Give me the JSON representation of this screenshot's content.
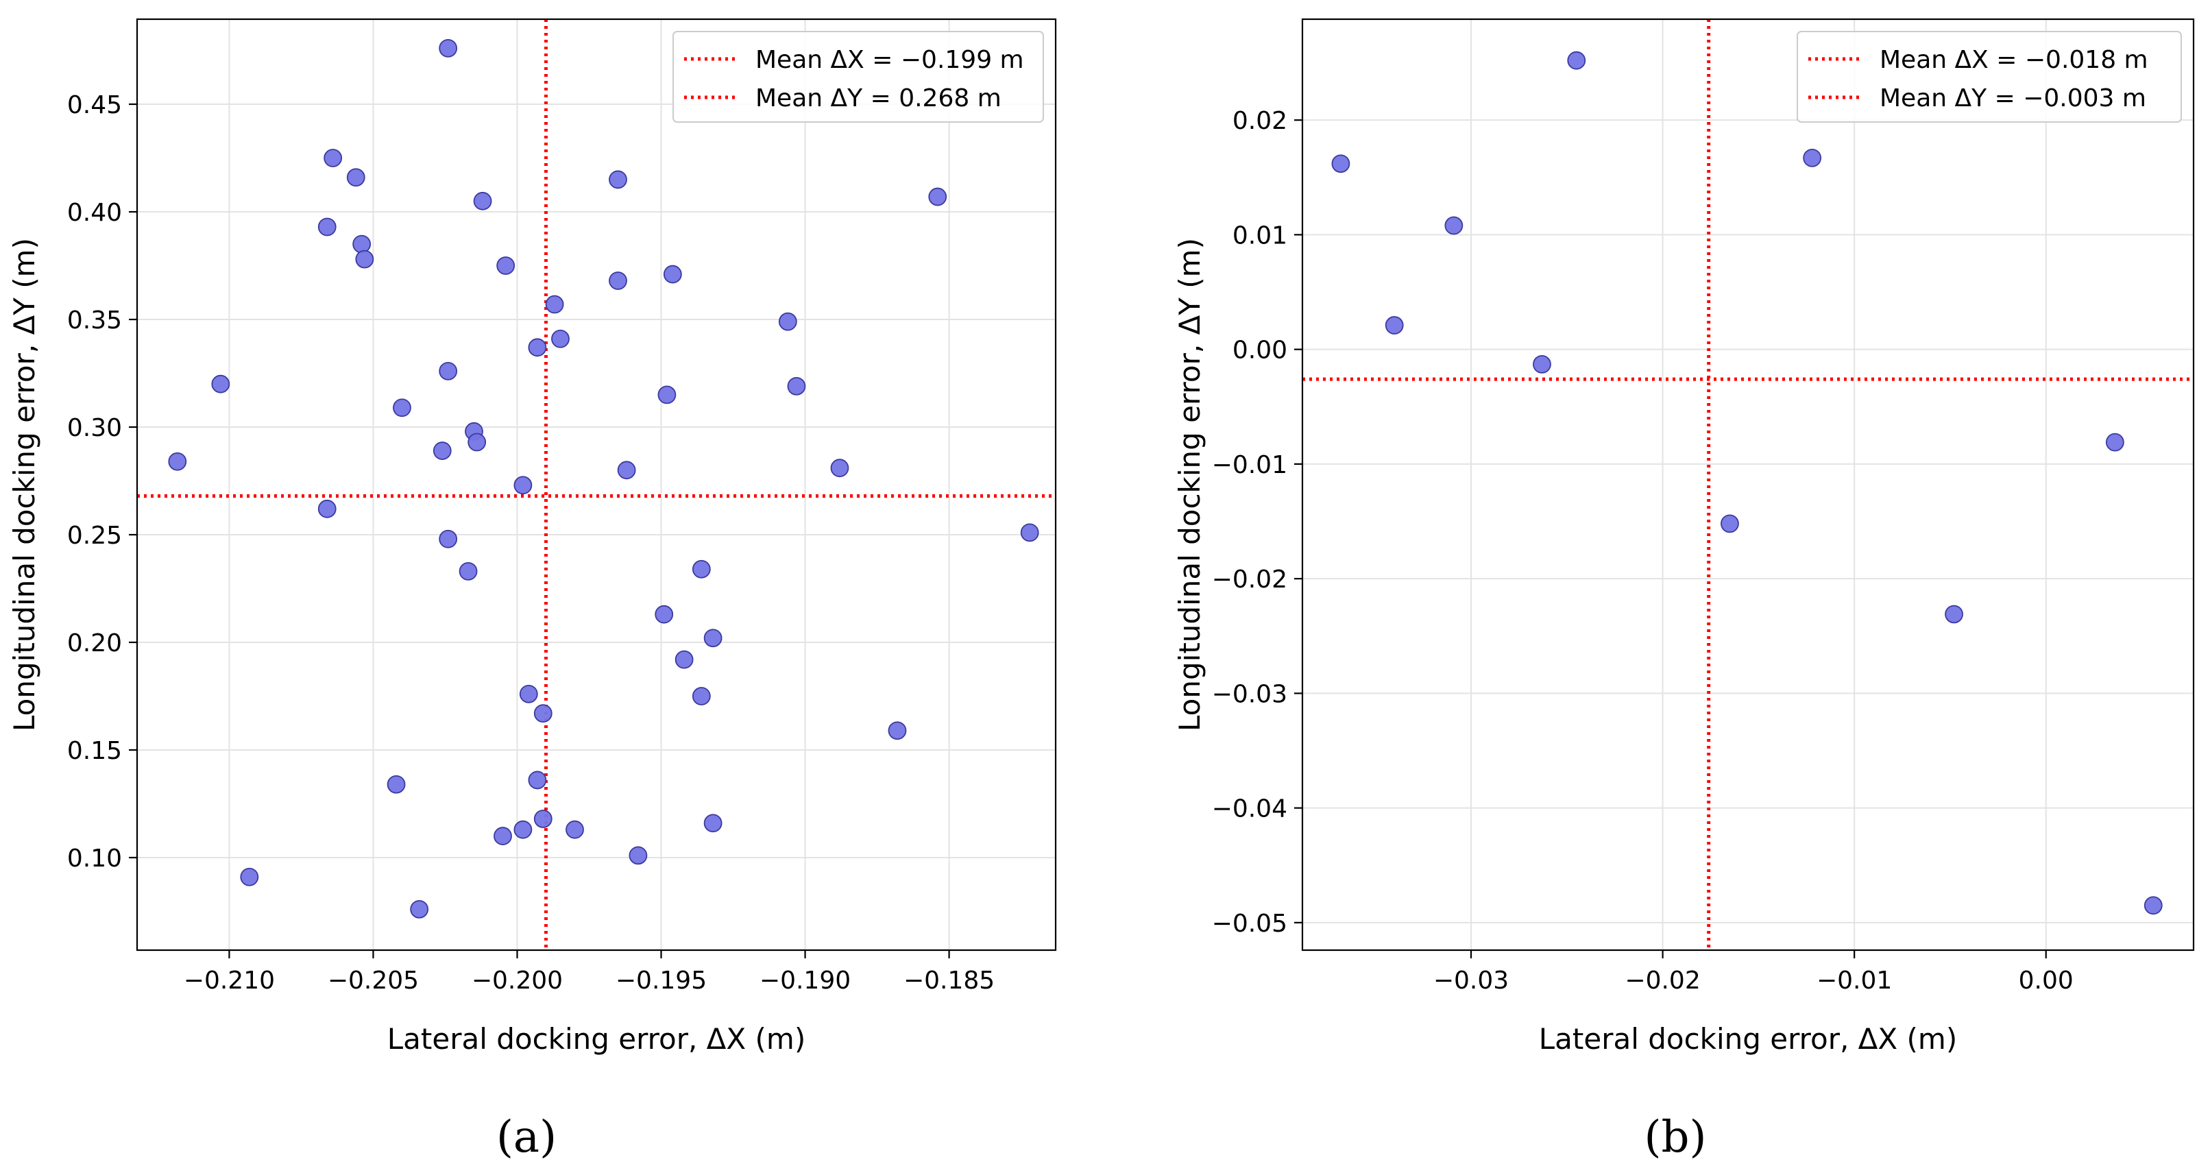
{
  "figure": {
    "panels": [
      {
        "id": "a",
        "caption": "(a)"
      },
      {
        "id": "b",
        "caption": "(b)"
      }
    ]
  },
  "chart_data": [
    {
      "type": "scatter",
      "panel": "(a)",
      "xlabel": "Lateral docking error, ΔX (m)",
      "ylabel": "Longitudinal docking error, ΔY (m)",
      "xlim": [
        -0.2132,
        -0.1813
      ],
      "ylim": [
        0.057,
        0.4895
      ],
      "xticks": [
        -0.21,
        -0.205,
        -0.2,
        -0.195,
        -0.19,
        -0.185
      ],
      "xtick_labels": [
        "−0.210",
        "−0.205",
        "−0.200",
        "−0.195",
        "−0.190",
        "−0.185"
      ],
      "yticks": [
        0.1,
        0.15,
        0.2,
        0.25,
        0.3,
        0.35,
        0.4,
        0.45
      ],
      "ytick_labels": [
        "0.10",
        "0.15",
        "0.20",
        "0.25",
        "0.30",
        "0.35",
        "0.40",
        "0.45"
      ],
      "grid": true,
      "point_color": "#7575e6",
      "point_edge": "#3a3aa0",
      "mean_color": "#ff0000",
      "mean_x": -0.199,
      "mean_y": 0.268,
      "legend_position": "top-right",
      "legend": [
        {
          "label": "Mean ΔX = −0.199 m"
        },
        {
          "label": "Mean ΔY = 0.268 m"
        }
      ],
      "points": [
        {
          "x": -0.2024,
          "y": 0.476
        },
        {
          "x": -0.2064,
          "y": 0.425
        },
        {
          "x": -0.2056,
          "y": 0.416
        },
        {
          "x": -0.1965,
          "y": 0.415
        },
        {
          "x": -0.2012,
          "y": 0.405
        },
        {
          "x": -0.1854,
          "y": 0.407
        },
        {
          "x": -0.2066,
          "y": 0.393
        },
        {
          "x": -0.2054,
          "y": 0.385
        },
        {
          "x": -0.2053,
          "y": 0.378
        },
        {
          "x": -0.2004,
          "y": 0.375
        },
        {
          "x": -0.1946,
          "y": 0.371
        },
        {
          "x": -0.1965,
          "y": 0.368
        },
        {
          "x": -0.1987,
          "y": 0.357
        },
        {
          "x": -0.1906,
          "y": 0.349
        },
        {
          "x": -0.1985,
          "y": 0.341
        },
        {
          "x": -0.1993,
          "y": 0.337
        },
        {
          "x": -0.2024,
          "y": 0.326
        },
        {
          "x": -0.2103,
          "y": 0.32
        },
        {
          "x": -0.1903,
          "y": 0.319
        },
        {
          "x": -0.1948,
          "y": 0.315
        },
        {
          "x": -0.204,
          "y": 0.309
        },
        {
          "x": -0.2015,
          "y": 0.298
        },
        {
          "x": -0.2014,
          "y": 0.293
        },
        {
          "x": -0.2026,
          "y": 0.289
        },
        {
          "x": -0.2118,
          "y": 0.284
        },
        {
          "x": -0.1888,
          "y": 0.281
        },
        {
          "x": -0.1962,
          "y": 0.28
        },
        {
          "x": -0.1998,
          "y": 0.273
        },
        {
          "x": -0.2066,
          "y": 0.262
        },
        {
          "x": -0.1822,
          "y": 0.251
        },
        {
          "x": -0.2024,
          "y": 0.248
        },
        {
          "x": -0.1936,
          "y": 0.234
        },
        {
          "x": -0.2017,
          "y": 0.233
        },
        {
          "x": -0.1949,
          "y": 0.213
        },
        {
          "x": -0.1932,
          "y": 0.202
        },
        {
          "x": -0.1942,
          "y": 0.192
        },
        {
          "x": -0.1996,
          "y": 0.176
        },
        {
          "x": -0.1936,
          "y": 0.175
        },
        {
          "x": -0.1991,
          "y": 0.167
        },
        {
          "x": -0.1868,
          "y": 0.159
        },
        {
          "x": -0.1993,
          "y": 0.136
        },
        {
          "x": -0.2042,
          "y": 0.134
        },
        {
          "x": -0.1991,
          "y": 0.118
        },
        {
          "x": -0.1932,
          "y": 0.116
        },
        {
          "x": -0.198,
          "y": 0.113
        },
        {
          "x": -0.1998,
          "y": 0.113
        },
        {
          "x": -0.2005,
          "y": 0.11
        },
        {
          "x": -0.1958,
          "y": 0.101
        },
        {
          "x": -0.2093,
          "y": 0.091
        },
        {
          "x": -0.2034,
          "y": 0.076
        }
      ]
    },
    {
      "type": "scatter",
      "panel": "(b)",
      "xlabel": "Lateral docking error, ΔX (m)",
      "ylabel": "Longitudinal docking error, ΔY (m)",
      "xlim": [
        -0.0388,
        0.0077
      ],
      "ylim": [
        -0.0524,
        0.0288
      ],
      "xticks": [
        -0.03,
        -0.02,
        -0.01,
        0.0
      ],
      "xtick_labels": [
        "−0.03",
        "−0.02",
        "−0.01",
        "0.00"
      ],
      "yticks": [
        -0.05,
        -0.04,
        -0.03,
        -0.02,
        -0.01,
        0.0,
        0.01,
        0.02
      ],
      "ytick_labels": [
        "−0.05",
        "−0.04",
        "−0.03",
        "−0.02",
        "−0.01",
        "0.00",
        "0.01",
        "0.02"
      ],
      "grid": true,
      "point_color": "#7575e6",
      "point_edge": "#3a3aa0",
      "mean_color": "#ff0000",
      "mean_x": -0.0176,
      "mean_y": -0.0026,
      "legend_position": "top-right",
      "legend": [
        {
          "label": "Mean ΔX = −0.018 m"
        },
        {
          "label": "Mean ΔY = −0.003 m"
        }
      ],
      "points": [
        {
          "x": -0.0245,
          "y": 0.0252
        },
        {
          "x": -0.0122,
          "y": 0.0167
        },
        {
          "x": -0.0368,
          "y": 0.0162
        },
        {
          "x": -0.0309,
          "y": 0.0108
        },
        {
          "x": -0.034,
          "y": 0.0021
        },
        {
          "x": -0.0263,
          "y": -0.0013
        },
        {
          "x": 0.0036,
          "y": -0.0081
        },
        {
          "x": -0.0165,
          "y": -0.0152
        },
        {
          "x": -0.0048,
          "y": -0.0231
        },
        {
          "x": 0.0056,
          "y": -0.0485
        }
      ]
    }
  ]
}
